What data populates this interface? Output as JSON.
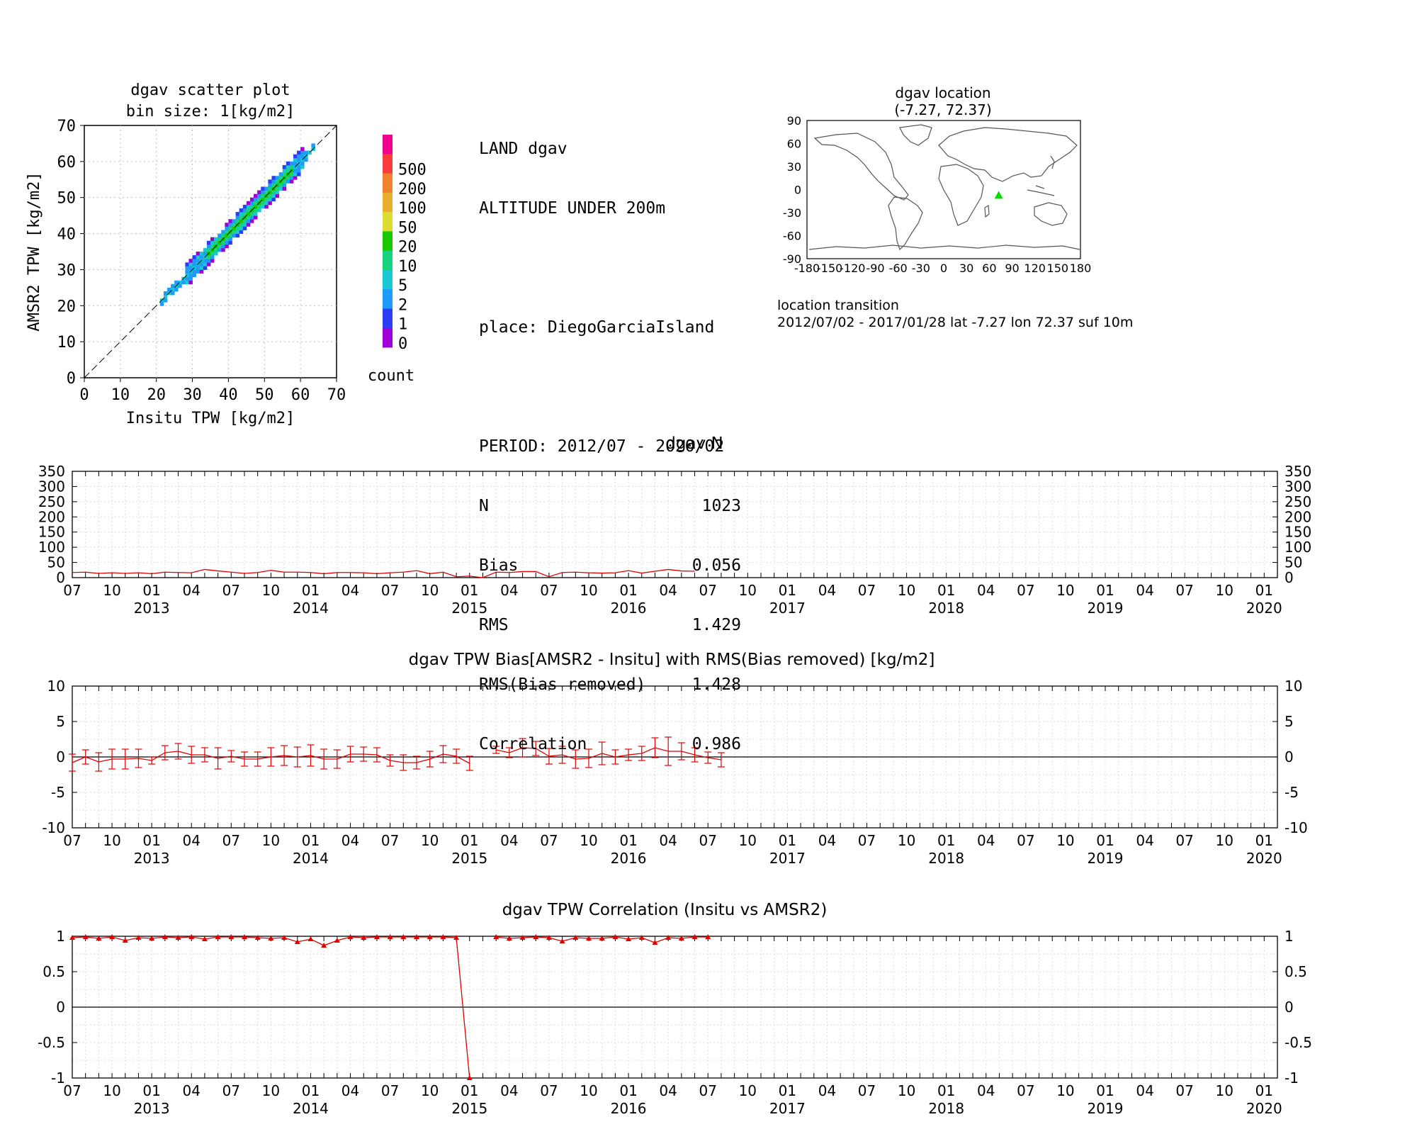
{
  "scatter": {
    "title_line1": "dgav scatter plot",
    "title_line2": "bin size: 1[kg/m2]",
    "xlabel": "Insitu TPW [kg/m2]",
    "ylabel": "AMSR2 TPW [kg/m2]",
    "ticks": [
      "0",
      "10",
      "20",
      "30",
      "40",
      "50",
      "60",
      "70"
    ],
    "colorbar_label": "count",
    "colorbar_levels": [
      "0",
      "1",
      "2",
      "5",
      "10",
      "20",
      "50",
      "100",
      "200",
      "500"
    ],
    "colorbar_colors": [
      "#9f00d7",
      "#2c3ef5",
      "#1f9bff",
      "#19c8d2",
      "#19d27f",
      "#19c800",
      "#dcdc32",
      "#e6af2d",
      "#f0822d",
      "#fa3c3c",
      "#f0008c"
    ]
  },
  "info": {
    "line1": "LAND dgav",
    "line2": "ALTITUDE UNDER 200m",
    "line3": "place: DiegoGarciaIsland",
    "line4": "PERIOD: 2012/07 - 2020/02",
    "rows": [
      {
        "k": "N",
        "v": "1023"
      },
      {
        "k": "Bias",
        "v": "0.056"
      },
      {
        "k": "RMS",
        "v": "1.429"
      },
      {
        "k": "RMS(Bias removed)",
        "v": "1.428"
      },
      {
        "k": "Correlation",
        "v": "0.986"
      }
    ]
  },
  "map": {
    "title_line1": "dgav location",
    "title_line2": "(-7.27, 72.37)",
    "lat_ticks": [
      "90",
      "60",
      "30",
      "0",
      "-30",
      "-60",
      "-90"
    ],
    "lon_ticks": [
      "-180",
      "-150",
      "-120",
      "-90",
      "-60",
      "-30",
      "0",
      "30",
      "60",
      "90",
      "120",
      "150",
      "180"
    ],
    "station": {
      "lat": -7.27,
      "lon": 72.37
    },
    "marker_color": "#00e000",
    "transition_title": "location transition",
    "transition_text": "2012/07/02 - 2017/01/28 lat -7.27 lon 72.37 suf 10m"
  },
  "time_axis": {
    "month_labels": [
      "07",
      "10",
      "01",
      "04",
      "07",
      "10",
      "01",
      "04",
      "07",
      "10",
      "01",
      "04",
      "07",
      "10",
      "01",
      "04",
      "07",
      "10",
      "01",
      "04",
      "07",
      "10",
      "01",
      "04",
      "07",
      "10",
      "01",
      "04",
      "07",
      "10",
      "01"
    ],
    "year_labels": [
      "2013",
      "2014",
      "2015",
      "2016",
      "2017",
      "2018",
      "2019",
      "2020"
    ]
  },
  "chart_data": [
    {
      "type": "scatter",
      "title": "dgav scatter plot",
      "xlabel": "Insitu TPW [kg/m2]",
      "ylabel": "AMSR2 TPW [kg/m2]",
      "xlim": [
        0,
        70
      ],
      "ylim": [
        0,
        70
      ],
      "description_binned": "2D histogram of count per 1 kg/m2 bin along the 1:1 line, approx 21-63 kg/m2",
      "n": 1023,
      "bias": 0.056,
      "rms": 1.429,
      "rms_bias_removed": 1.428,
      "correlation": 0.986
    },
    {
      "type": "line",
      "title": "dgav N",
      "ylim": [
        0,
        350
      ],
      "yticks": [
        0,
        50,
        100,
        150,
        200,
        250,
        300,
        350
      ],
      "series": [
        {
          "name": "N",
          "x": [
            "2012/07",
            "2012/08",
            "2012/09",
            "2012/10",
            "2012/11",
            "2012/12",
            "2013/01",
            "2013/02",
            "2013/03",
            "2013/04",
            "2013/05",
            "2013/06",
            "2013/07",
            "2013/08",
            "2013/09",
            "2013/10",
            "2013/11",
            "2013/12",
            "2014/01",
            "2014/02",
            "2014/03",
            "2014/04",
            "2014/05",
            "2014/06",
            "2014/07",
            "2014/08",
            "2014/09",
            "2014/10",
            "2014/11",
            "2014/12",
            "2015/01",
            "2015/02",
            "2015/03",
            "2015/04",
            "2015/05",
            "2015/06",
            "2015/07",
            "2015/08",
            "2015/09",
            "2015/10",
            "2015/11",
            "2015/12",
            "2016/01",
            "2016/02",
            "2016/03",
            "2016/04",
            "2016/05",
            "2016/06",
            "2016/07",
            "2016/08"
          ],
          "y": [
            17,
            18,
            14,
            16,
            14,
            16,
            13,
            18,
            17,
            16,
            27,
            22,
            18,
            14,
            17,
            24,
            18,
            18,
            17,
            13,
            17,
            17,
            16,
            13,
            16,
            18,
            23,
            13,
            18,
            3,
            5,
            0,
            18,
            17,
            20,
            20,
            3,
            17,
            18,
            16,
            15,
            16,
            23,
            15,
            21,
            27,
            22,
            21,
            null,
            null
          ]
        }
      ]
    },
    {
      "type": "line",
      "title": "dgav TPW Bias[AMSR2 - Insitu] with RMS(Bias removed) [kg/m2]",
      "ylim": [
        -10,
        10
      ],
      "yticks": [
        -10,
        -5,
        0,
        5,
        10
      ],
      "series": [
        {
          "name": "Bias",
          "x": [
            "2012/07",
            "2012/08",
            "2012/09",
            "2012/10",
            "2012/11",
            "2012/12",
            "2013/01",
            "2013/02",
            "2013/03",
            "2013/04",
            "2013/05",
            "2013/06",
            "2013/07",
            "2013/08",
            "2013/09",
            "2013/10",
            "2013/11",
            "2013/12",
            "2014/01",
            "2014/02",
            "2014/03",
            "2014/04",
            "2014/05",
            "2014/06",
            "2014/07",
            "2014/08",
            "2014/09",
            "2014/10",
            "2014/11",
            "2014/12",
            "2015/01",
            "2015/02",
            "2015/03",
            "2015/04",
            "2015/05",
            "2015/06",
            "2015/07",
            "2015/08",
            "2015/09",
            "2015/10",
            "2015/11",
            "2015/12",
            "2016/01",
            "2016/02",
            "2016/03",
            "2016/04",
            "2016/05",
            "2016/06",
            "2016/07",
            "2016/08"
          ],
          "y": [
            -0.8,
            0.0,
            -0.7,
            -0.3,
            -0.3,
            -0.2,
            -0.5,
            0.6,
            0.8,
            0.3,
            0.3,
            -0.2,
            0.1,
            -0.3,
            -0.3,
            0.0,
            0.2,
            0.0,
            0.2,
            -0.3,
            -0.3,
            0.4,
            0.4,
            0.3,
            -0.5,
            -0.8,
            -0.8,
            -0.3,
            0.4,
            0.1,
            -0.9,
            null,
            1.0,
            0.6,
            1.3,
            1.2,
            0.1,
            0.3,
            -0.3,
            -0.2,
            0.5,
            0.0,
            0.3,
            0.5,
            1.3,
            0.8,
            0.8,
            0.3,
            -0.1,
            -0.4
          ],
          "err": [
            1.2,
            1.0,
            1.3,
            1.4,
            1.4,
            1.3,
            0.5,
            1.0,
            1.1,
            1.2,
            1.0,
            1.5,
            0.8,
            1.0,
            1.0,
            1.3,
            1.4,
            1.4,
            1.5,
            1.4,
            1.3,
            1.1,
            1.0,
            1.0,
            0.8,
            1.1,
            0.9,
            1.1,
            1.2,
            1.0,
            1.0,
            null,
            0.5,
            0.7,
            1.3,
            1.0,
            1.1,
            1.2,
            1.3,
            1.3,
            1.6,
            1.0,
            0.8,
            1.0,
            1.4,
            2.0,
            1.2,
            1.0,
            0.8,
            1.0
          ]
        }
      ]
    },
    {
      "type": "line",
      "title": "dgav TPW Correlation (Insitu vs AMSR2)",
      "ylim": [
        -1,
        1
      ],
      "yticks": [
        -1,
        -0.5,
        0,
        0.5,
        1
      ],
      "series": [
        {
          "name": "Correlation",
          "x": [
            "2012/07",
            "2012/08",
            "2012/09",
            "2012/10",
            "2012/11",
            "2012/12",
            "2013/01",
            "2013/02",
            "2013/03",
            "2013/04",
            "2013/05",
            "2013/06",
            "2013/07",
            "2013/08",
            "2013/09",
            "2013/10",
            "2013/11",
            "2013/12",
            "2014/01",
            "2014/02",
            "2014/03",
            "2014/04",
            "2014/05",
            "2014/06",
            "2014/07",
            "2014/08",
            "2014/09",
            "2014/10",
            "2014/11",
            "2014/12",
            "2015/01",
            "2015/02",
            "2015/03",
            "2015/04",
            "2015/05",
            "2015/06",
            "2015/07",
            "2015/08",
            "2015/09",
            "2015/10",
            "2015/11",
            "2015/12",
            "2016/01",
            "2016/02",
            "2016/03",
            "2016/04",
            "2016/05",
            "2016/06",
            "2016/07",
            "2016/08"
          ],
          "y": [
            0.98,
            0.99,
            0.97,
            0.99,
            0.94,
            0.98,
            0.97,
            0.99,
            0.98,
            0.99,
            0.96,
            0.99,
            0.99,
            0.99,
            0.98,
            0.97,
            0.98,
            0.92,
            0.96,
            0.87,
            0.94,
            0.99,
            0.98,
            0.99,
            0.99,
            0.99,
            0.99,
            0.99,
            0.99,
            0.98,
            -1.0,
            null,
            0.99,
            0.97,
            0.98,
            0.99,
            0.98,
            0.93,
            0.98,
            0.97,
            0.97,
            0.99,
            0.96,
            0.98,
            0.91,
            0.98,
            0.97,
            0.99,
            0.99,
            null
          ]
        }
      ]
    }
  ]
}
